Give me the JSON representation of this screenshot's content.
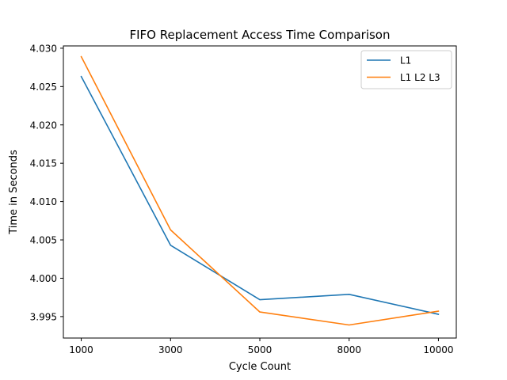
{
  "chart_data": {
    "type": "line",
    "title": "FIFO Replacement Access Time Comparison",
    "xlabel": "Cycle Count",
    "ylabel": "Time in Seconds",
    "categories": [
      "1000",
      "3000",
      "5000",
      "8000",
      "10000"
    ],
    "ylim": [
      3.9922,
      4.0303
    ],
    "yticks": [
      3.995,
      4.0,
      4.005,
      4.01,
      4.015,
      4.02,
      4.025,
      4.03
    ],
    "ytick_labels": [
      "3.995",
      "4.000",
      "4.005",
      "4.010",
      "4.015",
      "4.020",
      "4.025",
      "4.030"
    ],
    "grid": false,
    "legend_position": "top-right",
    "series": [
      {
        "name": "L1",
        "color": "#1f77b4",
        "values": [
          4.0263,
          4.0043,
          3.9972,
          3.9979,
          3.9953
        ]
      },
      {
        "name": "L1 L2 L3",
        "color": "#ff7f0e",
        "values": [
          4.0289,
          4.0063,
          3.9956,
          3.9939,
          3.9957
        ]
      }
    ]
  }
}
